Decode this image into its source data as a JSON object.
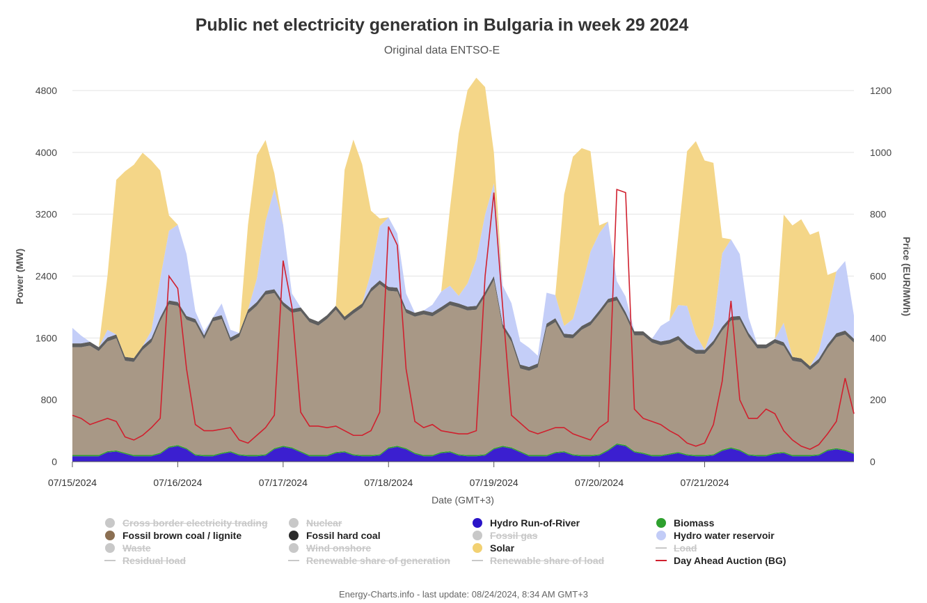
{
  "title": "Public net electricity generation in Bulgaria in week 29 2024",
  "subtitle": "Original data ENTSO-E",
  "footer": "Energy-Charts.info - last update: 08/24/2024, 8:34 AM GMT+3",
  "legend": [
    {
      "label": "Cross border electricity trading",
      "color": "#c8c8c8",
      "shape": "dot",
      "hidden": true
    },
    {
      "label": "Nuclear",
      "color": "#c8c8c8",
      "shape": "dot",
      "hidden": true
    },
    {
      "label": "Hydro Run-of-River",
      "color": "#2a14c8",
      "shape": "dot",
      "hidden": false
    },
    {
      "label": "Biomass",
      "color": "#2ea02e",
      "shape": "dot",
      "hidden": false
    },
    {
      "label": "Fossil brown coal / lignite",
      "color": "#8b6f52",
      "shape": "dot",
      "hidden": false
    },
    {
      "label": "Fossil hard coal",
      "color": "#2b2b2b",
      "shape": "dot",
      "hidden": false
    },
    {
      "label": "Fossil gas",
      "color": "#c8c8c8",
      "shape": "dot",
      "hidden": true
    },
    {
      "label": "Hydro water reservoir",
      "color": "#c2ccf7",
      "shape": "dot",
      "hidden": false
    },
    {
      "label": "Waste",
      "color": "#c8c8c8",
      "shape": "dot",
      "hidden": true
    },
    {
      "label": "Wind onshore",
      "color": "#c8c8c8",
      "shape": "dot",
      "hidden": true
    },
    {
      "label": "Solar",
      "color": "#f2d172",
      "shape": "dot",
      "hidden": false
    },
    {
      "label": "Load",
      "color": "#c8c8c8",
      "shape": "line",
      "hidden": true
    },
    {
      "label": "Residual load",
      "color": "#c8c8c8",
      "shape": "line",
      "hidden": true
    },
    {
      "label": "Renewable share of generation",
      "color": "#c8c8c8",
      "shape": "line",
      "hidden": true
    },
    {
      "label": "Renewable share of load",
      "color": "#c8c8c8",
      "shape": "line",
      "hidden": true
    },
    {
      "label": "Day Ahead Auction (BG)",
      "color": "#d0202e",
      "shape": "line",
      "hidden": false
    }
  ],
  "chart_data": {
    "type": "area",
    "xlabel": "Date (GMT+3)",
    "ylabel": "Power (MW)",
    "y2label": "Price (EUR/MWh)",
    "ylim": [
      0,
      4800
    ],
    "y2lim": [
      0,
      1200
    ],
    "yticks": [
      0,
      800,
      1600,
      2400,
      3200,
      4000,
      4800
    ],
    "y2ticks": [
      0,
      200,
      400,
      600,
      800,
      1000,
      1200
    ],
    "x_start": "07/15/2024 00:00",
    "x_end": "07/21/2024 23:00",
    "step_hours": 2,
    "xtick_labels": [
      "07/15/2024",
      "07/16/2024",
      "07/17/2024",
      "07/18/2024",
      "07/19/2024",
      "07/20/2024",
      "07/21/2024"
    ],
    "grid": true,
    "legend_position": "bottom",
    "colors": {
      "hydro_ror": "#3b1fd0",
      "biomass": "#2ea02e",
      "lignite": "#a89886",
      "hard_coal": "#5e5e5e",
      "hydro_reservoir": "#c4cef8",
      "solar": "#f4d688",
      "price": "#d0202e"
    },
    "series": [
      {
        "name": "Hydro Run-of-River",
        "key": "hydro_ror",
        "axis": "left",
        "values": [
          70,
          70,
          70,
          70,
          120,
          130,
          100,
          70,
          70,
          70,
          100,
          180,
          200,
          160,
          80,
          70,
          70,
          100,
          120,
          80,
          70,
          70,
          80,
          160,
          190,
          170,
          120,
          70,
          70,
          70,
          110,
          120,
          80,
          70,
          70,
          80,
          170,
          190,
          160,
          100,
          70,
          70,
          110,
          120,
          80,
          70,
          70,
          80,
          160,
          190,
          170,
          120,
          70,
          70,
          70,
          110,
          120,
          80,
          70,
          70,
          80,
          140,
          220,
          200,
          120,
          100,
          70,
          70,
          90,
          110,
          80,
          70,
          70,
          80,
          140,
          170,
          140,
          80,
          70,
          70,
          100,
          110,
          70,
          70,
          70,
          80,
          140,
          160,
          140,
          100
        ]
      },
      {
        "name": "Biomass",
        "key": "biomass",
        "axis": "left",
        "values": [
          15,
          15,
          15,
          15,
          15,
          15,
          15,
          15,
          15,
          15,
          15,
          15,
          15,
          15,
          15,
          15,
          15,
          15,
          15,
          15,
          15,
          15,
          15,
          15,
          15,
          15,
          15,
          15,
          15,
          15,
          15,
          15,
          15,
          15,
          15,
          15,
          15,
          15,
          15,
          15,
          15,
          15,
          15,
          15,
          15,
          15,
          15,
          15,
          15,
          15,
          15,
          15,
          15,
          15,
          15,
          15,
          15,
          15,
          15,
          15,
          15,
          15,
          15,
          15,
          15,
          15,
          15,
          15,
          15,
          15,
          15,
          15,
          15,
          15,
          15,
          15,
          15,
          15,
          15,
          15,
          15,
          15,
          15,
          15,
          15,
          15,
          15,
          15,
          15,
          15
        ]
      },
      {
        "name": "Fossil brown coal / lignite",
        "key": "lignite",
        "axis": "left",
        "values": [
          1395,
          1395,
          1415,
          1345,
          1420,
          1450,
          1190,
          1205,
          1360,
          1460,
          1700,
          1840,
          1800,
          1660,
          1700,
          1500,
          1730,
          1730,
          1420,
          1520,
          1830,
          1930,
          2065,
          2005,
          1810,
          1740,
          1810,
          1720,
          1675,
          1760,
          1840,
          1690,
          1820,
          1910,
          2110,
          2200,
          2025,
          1995,
          1750,
          1760,
          1820,
          1795,
          1825,
          1890,
          1900,
          1870,
          1880,
          2050,
          2175,
          1525,
          1365,
          1070,
          1090,
          1135,
          1650,
          1680,
          1470,
          1500,
          1620,
          1680,
          1810,
          1900,
          1850,
          1670,
          1500,
          1520,
          1455,
          1420,
          1420,
          1450,
          1370,
          1310,
          1310,
          1420,
          1540,
          1640,
          1680,
          1520,
          1380,
          1380,
          1420,
          1370,
          1220,
          1200,
          1100,
          1185,
          1310,
          1435,
          1490,
          1425
        ]
      },
      {
        "name": "Fossil hard coal",
        "key": "hard_coal",
        "axis": "left",
        "values": [
          50,
          50,
          50,
          50,
          50,
          50,
          50,
          50,
          50,
          50,
          50,
          50,
          50,
          50,
          50,
          50,
          50,
          50,
          50,
          50,
          50,
          50,
          50,
          50,
          50,
          50,
          50,
          50,
          50,
          50,
          50,
          50,
          50,
          50,
          50,
          50,
          50,
          50,
          50,
          50,
          50,
          50,
          50,
          50,
          50,
          50,
          50,
          50,
          50,
          50,
          50,
          50,
          50,
          50,
          50,
          50,
          50,
          50,
          50,
          50,
          50,
          50,
          50,
          50,
          50,
          50,
          50,
          50,
          50,
          50,
          50,
          50,
          50,
          50,
          50,
          50,
          50,
          50,
          50,
          50,
          50,
          50,
          50,
          50,
          50,
          50,
          50,
          50,
          50,
          50
        ]
      },
      {
        "name": "Hydro water reservoir",
        "key": "hydro_reservoir",
        "axis": "left",
        "values": [
          200,
          100,
          0,
          0,
          100,
          0,
          0,
          0,
          0,
          100,
          500,
          900,
          1000,
          800,
          100,
          50,
          0,
          150,
          100,
          0,
          0,
          300,
          900,
          1300,
          1000,
          200,
          0,
          0,
          0,
          0,
          0,
          0,
          0,
          0,
          200,
          700,
          900,
          700,
          200,
          0,
          0,
          100,
          200,
          200,
          100,
          300,
          600,
          1000,
          1200,
          500,
          450,
          300,
          250,
          100,
          400,
          300,
          100,
          200,
          500,
          900,
          1000,
          1000,
          200,
          200,
          0,
          0,
          0,
          200,
          250,
          400,
          500,
          200,
          0,
          200,
          950,
          1000,
          800,
          200,
          0,
          0,
          0,
          250,
          0,
          0,
          0,
          100,
          400,
          800,
          900,
          300
        ]
      },
      {
        "name": "Solar",
        "key": "solar",
        "axis": "left",
        "values": [
          0,
          0,
          0,
          0,
          700,
          2000,
          2400,
          2500,
          2500,
          2200,
          1400,
          200,
          0,
          0,
          0,
          0,
          0,
          0,
          0,
          0,
          1100,
          1600,
          1050,
          200,
          0,
          0,
          0,
          0,
          0,
          0,
          0,
          1900,
          2200,
          1800,
          800,
          100,
          0,
          0,
          0,
          0,
          0,
          0,
          0,
          1000,
          2100,
          2500,
          2350,
          1650,
          400,
          0,
          0,
          0,
          0,
          0,
          0,
          0,
          1700,
          2100,
          1800,
          1300,
          100,
          0,
          0,
          0,
          0,
          0,
          0,
          0,
          0,
          900,
          2000,
          2500,
          2450,
          2100,
          200,
          0,
          0,
          0,
          0,
          0,
          0,
          1400,
          1700,
          1800,
          1700,
          1550,
          500,
          0,
          0,
          0
        ]
      },
      {
        "name": "Day Ahead Auction (BG)",
        "key": "price",
        "axis": "right",
        "values": [
          150,
          140,
          120,
          130,
          140,
          130,
          80,
          70,
          85,
          110,
          140,
          600,
          560,
          300,
          120,
          100,
          100,
          105,
          110,
          70,
          60,
          85,
          110,
          150,
          650,
          500,
          160,
          115,
          115,
          110,
          115,
          100,
          85,
          85,
          100,
          160,
          760,
          700,
          300,
          130,
          110,
          120,
          100,
          95,
          90,
          90,
          100,
          600,
          870,
          500,
          150,
          125,
          100,
          90,
          100,
          110,
          110,
          90,
          80,
          70,
          110,
          130,
          880,
          870,
          170,
          140,
          130,
          120,
          100,
          85,
          60,
          50,
          60,
          120,
          260,
          520,
          200,
          140,
          140,
          170,
          155,
          100,
          70,
          50,
          40,
          55,
          90,
          130,
          270,
          155
        ]
      }
    ]
  }
}
